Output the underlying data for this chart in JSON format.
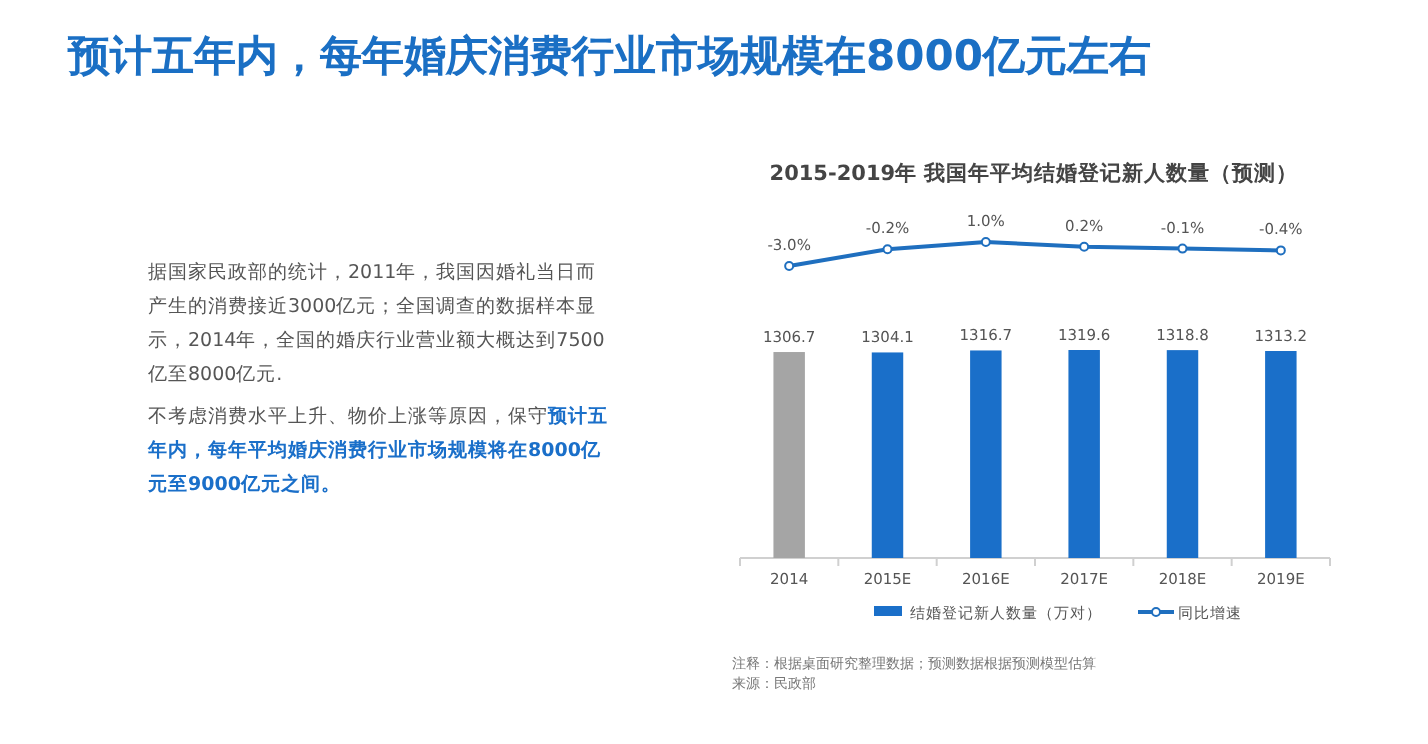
{
  "chart_data": [
    {
      "type": "line",
      "title": "预计五年内，每年婚庆消费行业市场规模在8000亿元左右",
      "subtitle": "2015-2019年 我国年平均结婚登记新人数量（预测）",
      "annotations": [
        "据国家民政部的统计，2011年，我国因婚礼当日而产生的消费接近3000亿元；全国调查的数据样本显示，2014年，全国的婚庆行业营业额大概达到7500亿至8000亿元.",
        "不考虑消费水平上升、物价上涨等原因，保守",
        "预计五年内，每年平均婚庆消费行业市场规模将在8000亿元至9000亿元之间。"
      ],
      "categories": [
        null,
        null,
        null,
        null,
        null,
        null
      ],
      "data_labels": true,
      "legend": "bottom",
      "marker": "circle",
      "series": [
        {
          "name": "同比增速",
          "color": "#1f6fbf",
          "values": [
            -3.0,
            -0.2,
            1.0,
            0.2,
            -0.1,
            -0.4
          ],
          "value_labels": [
            "-3.0%",
            "-0.2%",
            "1.0%",
            "0.2%",
            "-0.1%",
            "-0.4%"
          ]
        }
      ]
    },
    {
      "type": "bar",
      "annotations": [
        "注释：根据桌面研究整理数据；预测数据根据预测模型估算",
        "来源：民政部"
      ],
      "categories": [
        "2014",
        "2015E",
        "2016E",
        "2017E",
        "2018E",
        "2019E"
      ],
      "data_labels": true,
      "legend": "bottom",
      "series": [
        {
          "name": "结婚登记新人数量（万对）",
          "color": "#1a6fc9",
          "colors": [
            "#a5a5a5",
            "#1a6fc9",
            "#1a6fc9",
            "#1a6fc9",
            "#1a6fc9",
            "#1a6fc9"
          ],
          "values": [
            1306.7,
            1304.1,
            1316.7,
            1319.6,
            1318.8,
            1313.2
          ],
          "value_labels": [
            "1306.7",
            "1304.1",
            "1316.7",
            "1319.6",
            "1318.8",
            "1313.2"
          ]
        }
      ]
    }
  ]
}
